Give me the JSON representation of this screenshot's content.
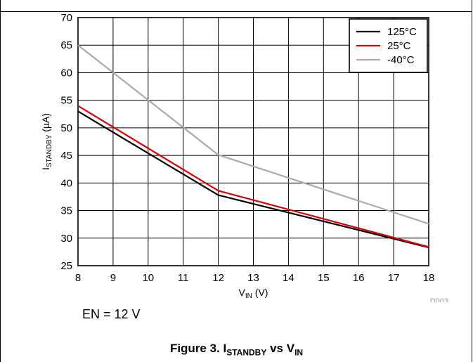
{
  "chart_data": {
    "type": "line",
    "xlabel": {
      "main": "V",
      "sub": "IN",
      "unit": " (V)"
    },
    "ylabel": {
      "main": "I",
      "sub": "STANDBY",
      "unit": " (µA)"
    },
    "xlim": [
      8,
      18
    ],
    "ylim": [
      25,
      70
    ],
    "xticks": [
      8,
      9,
      10,
      11,
      12,
      13,
      14,
      15,
      16,
      17,
      18
    ],
    "yticks": [
      25,
      30,
      35,
      40,
      45,
      50,
      55,
      60,
      65,
      70
    ],
    "grid": true,
    "legend_position": "top-right",
    "series": [
      {
        "name": "125°C",
        "color": "#000000",
        "x": [
          8,
          12,
          18
        ],
        "y": [
          53,
          37.8,
          28.3
        ]
      },
      {
        "name": "25°C",
        "color": "#e00000",
        "x": [
          8,
          12,
          18
        ],
        "y": [
          54,
          38.6,
          28.4
        ]
      },
      {
        "name": "-40°C",
        "color": "#aaaaaa",
        "x": [
          8,
          12,
          18
        ],
        "y": [
          65,
          45.1,
          32.6
        ]
      }
    ],
    "figure_id": "D003"
  },
  "condition": "EN = 12 V",
  "caption": {
    "prefix": "Figure 3. I",
    "sub1": "STANDBY",
    "middle": " vs V",
    "sub2": "IN"
  }
}
